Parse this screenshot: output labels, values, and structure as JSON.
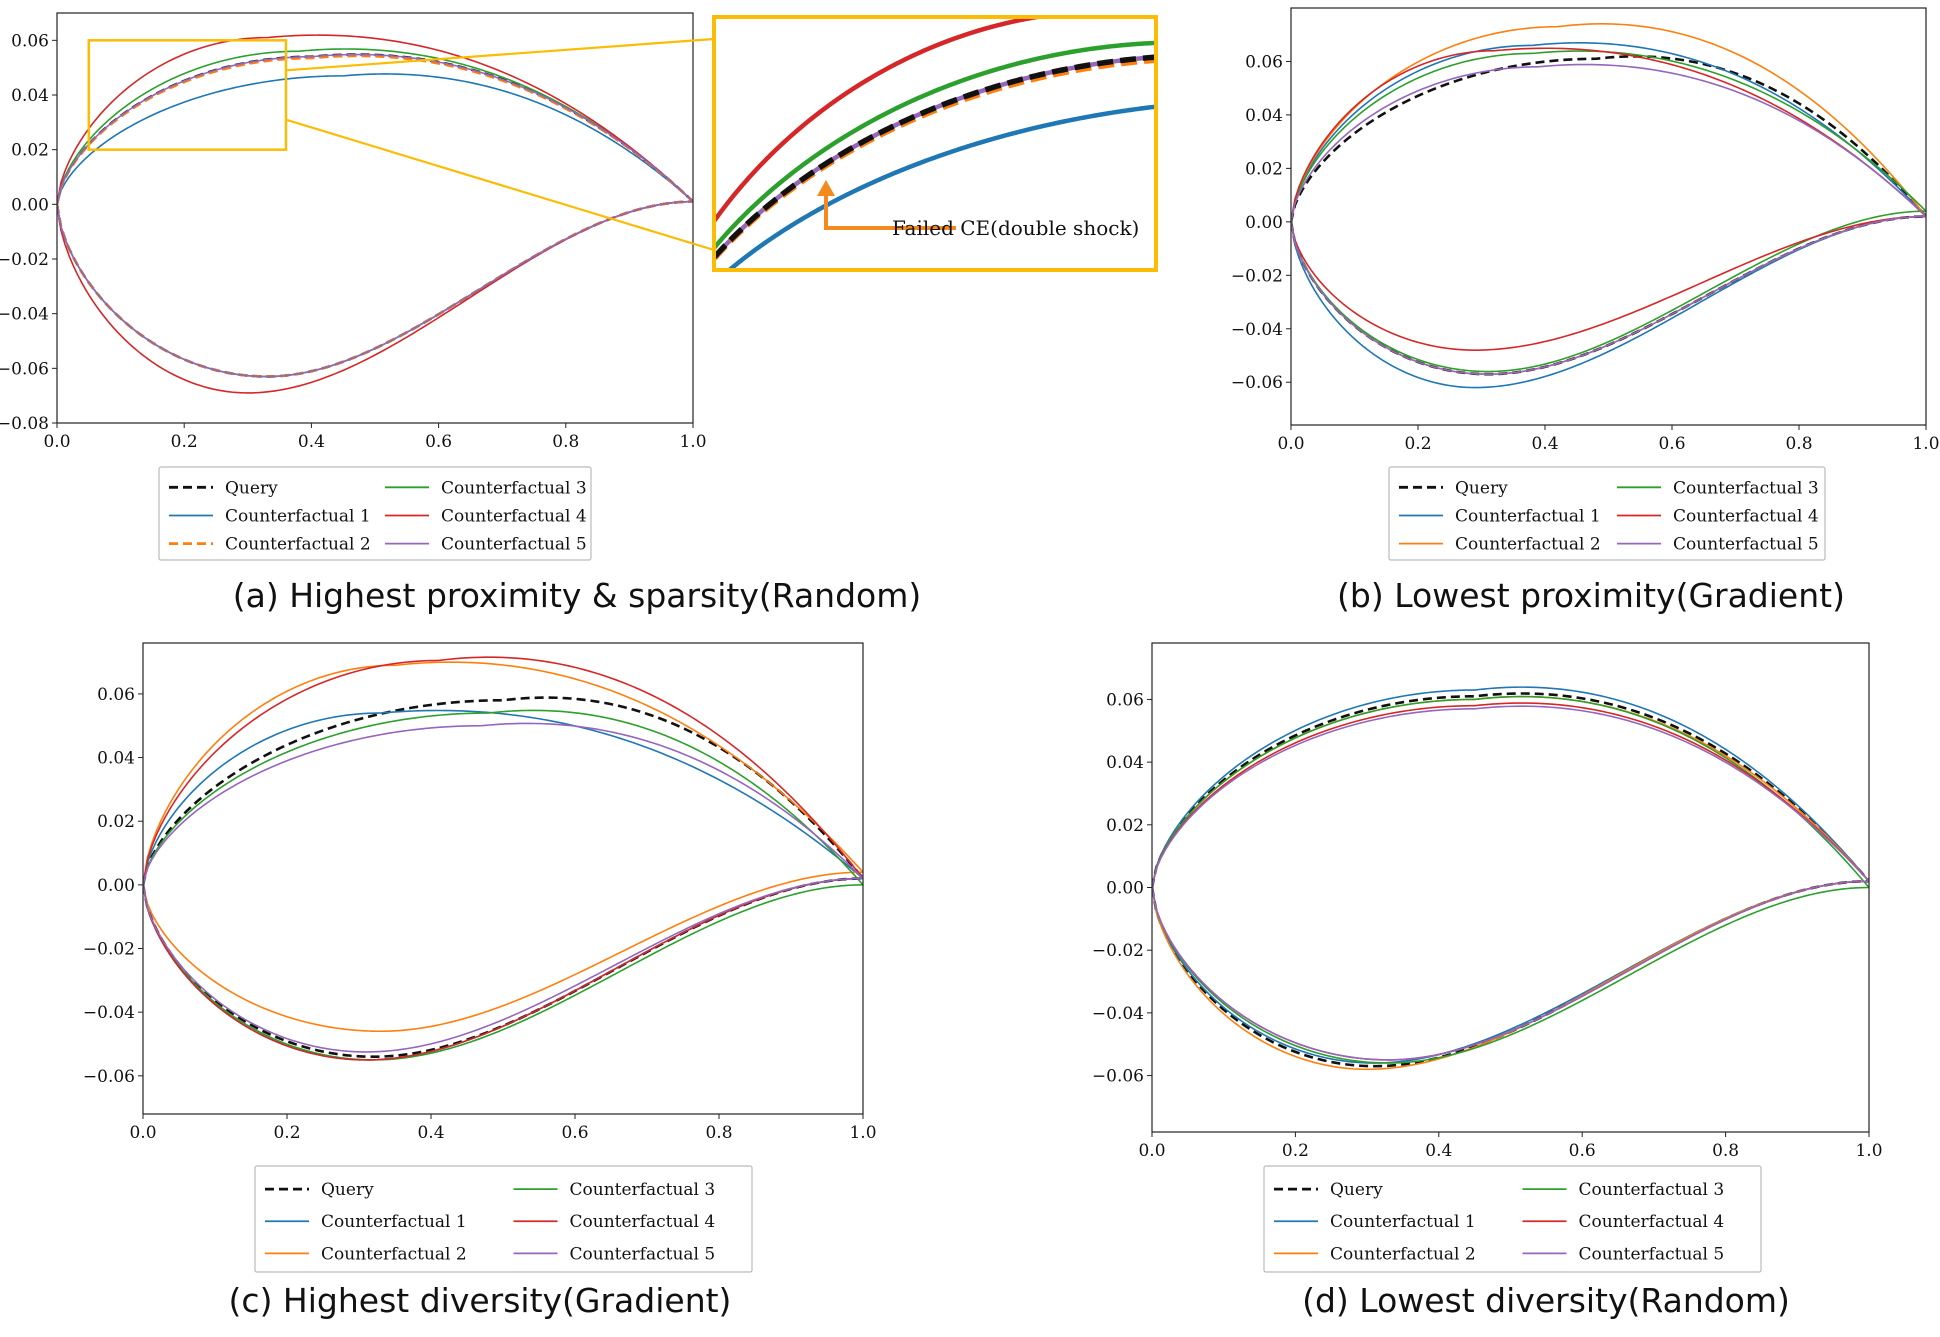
{
  "chart_data": [
    {
      "type": "line",
      "panel": "a",
      "caption": "(a) Highest proximity & sparsity(Random)",
      "xlim": [
        0.0,
        1.0
      ],
      "ylim": [
        -0.08,
        0.07
      ],
      "xticks": [
        "0.0",
        "0.2",
        "0.4",
        "0.6",
        "0.8",
        "1.0"
      ],
      "yticks": [
        "0.06",
        "0.04",
        "0.02",
        "0.00",
        "−0.02",
        "−0.04",
        "−0.06",
        "−0.08"
      ],
      "ytick_values": [
        0.06,
        0.04,
        0.02,
        0.0,
        -0.02,
        -0.04,
        -0.06,
        -0.08
      ],
      "series": [
        {
          "name": "Query",
          "color": "#111111",
          "dash": true,
          "upper_max": 0.054,
          "upper_xmax": 0.4,
          "lower_min": -0.063,
          "lower_xmin": 0.33,
          "te": 0.001
        },
        {
          "name": "Counterfactual 1",
          "color": "#1f77b4",
          "dash": false,
          "upper_max": 0.047,
          "upper_xmax": 0.45,
          "lower_min": -0.063,
          "lower_xmin": 0.33,
          "te": 0.001
        },
        {
          "name": "Counterfactual 2",
          "color": "#ff7f0e",
          "dash": true,
          "upper_max": 0.0535,
          "upper_xmax": 0.4,
          "lower_min": -0.063,
          "lower_xmin": 0.33,
          "te": 0.001
        },
        {
          "name": "Counterfactual 3",
          "color": "#2ca02c",
          "dash": false,
          "upper_max": 0.056,
          "upper_xmax": 0.38,
          "lower_min": -0.063,
          "lower_xmin": 0.33,
          "te": 0.001
        },
        {
          "name": "Counterfactual 4",
          "color": "#d62728",
          "dash": false,
          "upper_max": 0.061,
          "upper_xmax": 0.33,
          "lower_min": -0.069,
          "lower_xmin": 0.3,
          "te": 0.001
        },
        {
          "name": "Counterfactual 5",
          "color": "#9467bd",
          "dash": false,
          "upper_max": 0.054,
          "upper_xmax": 0.4,
          "lower_min": -0.063,
          "lower_xmin": 0.33,
          "te": 0.001
        }
      ],
      "inset": {
        "xlim": [
          0.05,
          0.36
        ],
        "ylim": [
          0.02,
          0.06
        ],
        "annotation": "Failed CE(double shock)"
      }
    },
    {
      "type": "line",
      "panel": "b",
      "caption": "(b) Lowest proximity(Gradient)",
      "xlim": [
        0.0,
        1.0
      ],
      "ylim": [
        -0.076,
        0.08
      ],
      "xticks": [
        "0.0",
        "0.2",
        "0.4",
        "0.6",
        "0.8",
        "1.0"
      ],
      "yticks": [
        "0.06",
        "0.04",
        "0.02",
        "0.00",
        "−0.02",
        "−0.04",
        "−0.06"
      ],
      "ytick_values": [
        0.06,
        0.04,
        0.02,
        0.0,
        -0.02,
        -0.04,
        -0.06
      ],
      "series": [
        {
          "name": "Query",
          "color": "#111111",
          "dash": true,
          "upper_max": 0.061,
          "upper_xmax": 0.48,
          "lower_min": -0.057,
          "lower_xmin": 0.31,
          "te": 0.002
        },
        {
          "name": "Counterfactual 1",
          "color": "#1f77b4",
          "dash": false,
          "upper_max": 0.066,
          "upper_xmax": 0.38,
          "lower_min": -0.062,
          "lower_xmin": 0.29,
          "te": 0.002
        },
        {
          "name": "Counterfactual 2",
          "color": "#ff7f0e",
          "dash": false,
          "upper_max": 0.073,
          "upper_xmax": 0.42,
          "lower_min": -0.057,
          "lower_xmin": 0.31,
          "te": 0.002
        },
        {
          "name": "Counterfactual 3",
          "color": "#2ca02c",
          "dash": false,
          "upper_max": 0.063,
          "upper_xmax": 0.38,
          "lower_min": -0.056,
          "lower_xmin": 0.31,
          "te": 0.004
        },
        {
          "name": "Counterfactual 4",
          "color": "#d62728",
          "dash": false,
          "upper_max": 0.064,
          "upper_xmax": 0.32,
          "lower_min": -0.048,
          "lower_xmin": 0.29,
          "te": 0.002
        },
        {
          "name": "Counterfactual 5",
          "color": "#9467bd",
          "dash": false,
          "upper_max": 0.058,
          "upper_xmax": 0.39,
          "lower_min": -0.057,
          "lower_xmin": 0.31,
          "te": 0.002
        }
      ]
    },
    {
      "type": "line",
      "panel": "c",
      "caption": "(c) Highest diversity(Gradient)",
      "xlim": [
        0.0,
        1.0
      ],
      "ylim": [
        -0.072,
        0.076
      ],
      "xticks": [
        "0.0",
        "0.2",
        "0.4",
        "0.6",
        "0.8",
        "1.0"
      ],
      "yticks": [
        "0.06",
        "0.04",
        "0.02",
        "0.00",
        "−0.02",
        "−0.04",
        "−0.06"
      ],
      "ytick_values": [
        0.06,
        0.04,
        0.02,
        0.0,
        -0.02,
        -0.04,
        -0.06
      ],
      "series": [
        {
          "name": "Query",
          "color": "#111111",
          "dash": true,
          "upper_max": 0.058,
          "upper_xmax": 0.5,
          "lower_min": -0.054,
          "lower_xmin": 0.32,
          "te": 0.002
        },
        {
          "name": "Counterfactual 1",
          "color": "#1f77b4",
          "dash": false,
          "upper_max": 0.054,
          "upper_xmax": 0.33,
          "lower_min": -0.055,
          "lower_xmin": 0.31,
          "te": 0.002
        },
        {
          "name": "Counterfactual 2",
          "color": "#ff7f0e",
          "dash": false,
          "upper_max": 0.069,
          "upper_xmax": 0.35,
          "lower_min": -0.046,
          "lower_xmin": 0.33,
          "te": 0.004
        },
        {
          "name": "Counterfactual 3",
          "color": "#2ca02c",
          "dash": false,
          "upper_max": 0.054,
          "upper_xmax": 0.48,
          "lower_min": -0.055,
          "lower_xmin": 0.32,
          "te": 0.0
        },
        {
          "name": "Counterfactual 4",
          "color": "#d62728",
          "dash": false,
          "upper_max": 0.0705,
          "upper_xmax": 0.41,
          "lower_min": -0.055,
          "lower_xmin": 0.31,
          "te": 0.002
        },
        {
          "name": "Counterfactual 5",
          "color": "#9467bd",
          "dash": false,
          "upper_max": 0.05,
          "upper_xmax": 0.47,
          "lower_min": -0.0525,
          "lower_xmin": 0.31,
          "te": 0.002
        }
      ]
    },
    {
      "type": "line",
      "panel": "d",
      "caption": "(d) Lowest diversity(Random)",
      "xlim": [
        0.0,
        1.0
      ],
      "ylim": [
        -0.078,
        0.078
      ],
      "xticks": [
        "0.0",
        "0.2",
        "0.4",
        "0.6",
        "0.8",
        "1.0"
      ],
      "yticks": [
        "0.06",
        "0.04",
        "0.02",
        "0.00",
        "−0.02",
        "−0.04",
        "−0.06"
      ],
      "ytick_values": [
        0.06,
        0.04,
        0.02,
        0.0,
        -0.02,
        -0.04,
        -0.06
      ],
      "series": [
        {
          "name": "Query",
          "color": "#111111",
          "dash": true,
          "upper_max": 0.061,
          "upper_xmax": 0.45,
          "lower_min": -0.057,
          "lower_xmin": 0.31,
          "te": 0.002
        },
        {
          "name": "Counterfactual 1",
          "color": "#1f77b4",
          "dash": false,
          "upper_max": 0.063,
          "upper_xmax": 0.45,
          "lower_min": -0.056,
          "lower_xmin": 0.31,
          "te": 0.002
        },
        {
          "name": "Counterfactual 2",
          "color": "#ff7f0e",
          "dash": false,
          "upper_max": 0.06,
          "upper_xmax": 0.45,
          "lower_min": -0.058,
          "lower_xmin": 0.3,
          "te": 0.002
        },
        {
          "name": "Counterfactual 3",
          "color": "#2ca02c",
          "dash": false,
          "upper_max": 0.06,
          "upper_xmax": 0.45,
          "lower_min": -0.056,
          "lower_xmin": 0.33,
          "te": 0.0
        },
        {
          "name": "Counterfactual 4",
          "color": "#d62728",
          "dash": false,
          "upper_max": 0.058,
          "upper_xmax": 0.45,
          "lower_min": -0.055,
          "lower_xmin": 0.33,
          "te": 0.002
        },
        {
          "name": "Counterfactual 5",
          "color": "#9467bd",
          "dash": false,
          "upper_max": 0.057,
          "upper_xmax": 0.45,
          "lower_min": -0.055,
          "lower_xmin": 0.33,
          "te": 0.002
        }
      ]
    }
  ]
}
